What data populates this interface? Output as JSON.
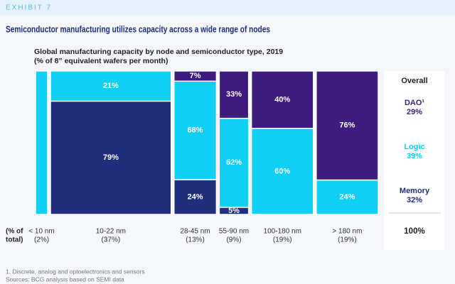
{
  "exhibit": "EXHIBIT 7",
  "headline": "Semiconductor manufacturing utilizes capacity across a wide range of nodes",
  "chart_data": {
    "type": "mekko",
    "title": "Global manufacturing capacity by node and semiconductor type, 2019",
    "subtitle": "(% of 8” equivalent wafers per month)",
    "axis_label": [
      "(% of",
      "total)"
    ],
    "categories": [
      "< 10 nm",
      "10-22 nm",
      "28-45 nm",
      "55-90 nm",
      "100-180 nm",
      "> 180 nm"
    ],
    "widths": [
      2,
      37,
      13,
      9,
      19,
      19
    ],
    "width_labels": [
      "(2%)",
      "(37%)",
      "(13%)",
      "(9%)",
      "(19%)",
      "(19%)"
    ],
    "series": [
      {
        "name": "Memory",
        "color": "#1f2f7d",
        "values": [
          0,
          79,
          24,
          5,
          0,
          0
        ],
        "value_labels": [
          null,
          "79%",
          "24%",
          "5%",
          null,
          null
        ],
        "total": 32,
        "total_label": "32%"
      },
      {
        "name": "Logic",
        "color": "#10cff5",
        "values": [
          100,
          21,
          68,
          62,
          60,
          24
        ],
        "value_labels": [
          null,
          "21%",
          "68%",
          "62%",
          "60%",
          "24%"
        ],
        "total": 39,
        "total_label": "39%"
      },
      {
        "name": "DAO¹",
        "color": "#3d1c7e",
        "values": [
          0,
          0,
          7,
          33,
          40,
          76
        ],
        "value_labels": [
          null,
          null,
          "7%",
          "33%",
          "40%",
          "76%"
        ],
        "total": 29,
        "total_label": "29%"
      }
    ],
    "overall_title": "Overall",
    "overall_total": 100,
    "overall_total_label": "100%",
    "footnote": "1. Discrete, analog and optoelectronics and sensors",
    "source": "Sources: BCG analysis based on SEMI data"
  }
}
